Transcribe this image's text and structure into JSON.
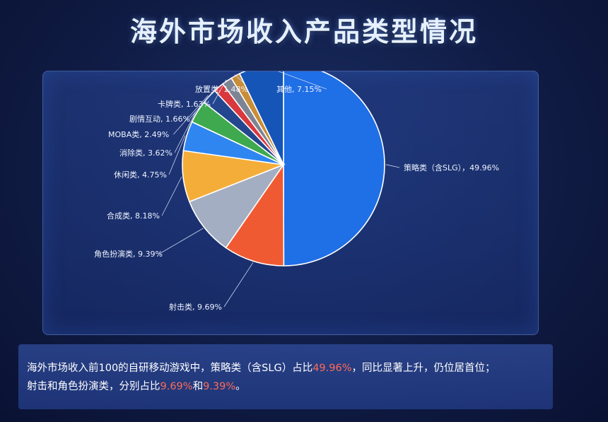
{
  "title": "海外市场收入产品类型情况",
  "chart_data": {
    "type": "pie",
    "title": "海外市场收入产品类型情况",
    "slices": [
      {
        "label": "策略类（含SLG）",
        "display": "策略类（含SLG），49.96%",
        "value": 49.96,
        "color": "#1f6fe6"
      },
      {
        "label": "射击类",
        "display": "射击类, 9.69%",
        "value": 9.69,
        "color": "#f05a32"
      },
      {
        "label": "角色扮演类",
        "display": "角色扮演类, 9.39%",
        "value": 9.39,
        "color": "#a4aec2"
      },
      {
        "label": "合成类",
        "display": "合成类, 8.18%",
        "value": 8.18,
        "color": "#f5ad39"
      },
      {
        "label": "休闲类",
        "display": "休闲类, 4.75%",
        "value": 4.75,
        "color": "#2f86f0"
      },
      {
        "label": "消除类",
        "display": "消除类, 3.62%",
        "value": 3.62,
        "color": "#3ea94e"
      },
      {
        "label": "MOBA类",
        "display": "MOBA类, 2.49%",
        "value": 2.49,
        "color": "#23468f"
      },
      {
        "label": "剧情互动",
        "display": "剧情互动, 1.66%",
        "value": 1.66,
        "color": "#d9383e"
      },
      {
        "label": "卡牌类",
        "display": "卡牌类, 1.63%",
        "value": 1.63,
        "color": "#7d8494"
      },
      {
        "label": "放置类",
        "display": "放置类, 1.48%",
        "value": 1.48,
        "color": "#c88d37"
      },
      {
        "label": "其他",
        "display": "其他, 7.15%",
        "value": 7.15,
        "color": "#1555b8"
      }
    ]
  },
  "summary": {
    "line1_a": "海外市场收入前100的自研移动游戏中，策略类（含SLG）占比",
    "line1_hl": "49.96%",
    "line1_b": "，同比显著上升，仍位居首位；",
    "line2_a": "射击和角色扮演类，分别占比",
    "line2_hl1": "9.69%",
    "line2_mid": "和",
    "line2_hl2": "9.39%",
    "line2_end": "。"
  }
}
